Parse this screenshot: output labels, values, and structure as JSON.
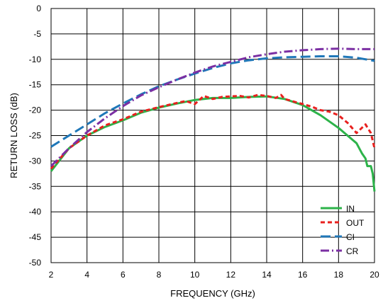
{
  "chart_data": {
    "type": "line",
    "title": "",
    "xlabel": "FREQUENCY (GHz)",
    "ylabel": "RETURN LOSS (dB)",
    "xlim": [
      2,
      20
    ],
    "ylim": [
      -50,
      0
    ],
    "xticks": [
      2,
      4,
      6,
      8,
      10,
      12,
      14,
      16,
      18,
      20
    ],
    "yticks": [
      0,
      -5,
      -10,
      -15,
      -20,
      -25,
      -30,
      -35,
      -40,
      -45,
      -50
    ],
    "grid": true,
    "legend_position": "bottom-right",
    "series": [
      {
        "name": "IN",
        "color": "#2db34a",
        "dash": "solid",
        "points": [
          [
            2,
            -32
          ],
          [
            3,
            -27.5
          ],
          [
            4,
            -25
          ],
          [
            5,
            -23.3
          ],
          [
            6,
            -22
          ],
          [
            7,
            -20.5
          ],
          [
            8,
            -19.5
          ],
          [
            9,
            -18.7
          ],
          [
            10,
            -18
          ],
          [
            11,
            -17.6
          ],
          [
            12,
            -17.6
          ],
          [
            13,
            -17.4
          ],
          [
            14,
            -17.3
          ],
          [
            15,
            -17.8
          ],
          [
            16,
            -19
          ],
          [
            17,
            -21
          ],
          [
            18,
            -23.5
          ],
          [
            18.5,
            -25
          ],
          [
            19,
            -26.5
          ],
          [
            19.3,
            -28.5
          ],
          [
            19.5,
            -29.5
          ],
          [
            19.6,
            -31
          ],
          [
            19.8,
            -31
          ],
          [
            19.9,
            -32.5
          ],
          [
            20,
            -36
          ]
        ]
      },
      {
        "name": "OUT",
        "color": "#e8201e",
        "dash": "dashed",
        "points": [
          [
            2,
            -31.5
          ],
          [
            3,
            -27.5
          ],
          [
            4,
            -25
          ],
          [
            5,
            -23
          ],
          [
            6,
            -21.8
          ],
          [
            7,
            -20.3
          ],
          [
            8,
            -19.4
          ],
          [
            9,
            -18.6
          ],
          [
            9.5,
            -18.2
          ],
          [
            10,
            -18.8
          ],
          [
            10.5,
            -17.2
          ],
          [
            11,
            -17.8
          ],
          [
            11.5,
            -17.4
          ],
          [
            12,
            -17.3
          ],
          [
            12.5,
            -17.2
          ],
          [
            13,
            -17.5
          ],
          [
            13.5,
            -17
          ],
          [
            14,
            -17.2
          ],
          [
            14.5,
            -17.6
          ],
          [
            14.8,
            -17
          ],
          [
            15,
            -17.8
          ],
          [
            15.5,
            -18.3
          ],
          [
            16,
            -18.8
          ],
          [
            16.5,
            -19.3
          ],
          [
            17,
            -20
          ],
          [
            17.5,
            -20.3
          ],
          [
            18,
            -21
          ],
          [
            18.5,
            -22.5
          ],
          [
            19,
            -24.5
          ],
          [
            19.5,
            -22.8
          ],
          [
            19.8,
            -24.5
          ],
          [
            20,
            -27.5
          ]
        ]
      },
      {
        "name": "CI",
        "color": "#1f77b8",
        "dash": "longdash",
        "points": [
          [
            2,
            -27.2
          ],
          [
            3,
            -25
          ],
          [
            4,
            -22.8
          ],
          [
            5,
            -20.6
          ],
          [
            6,
            -18.7
          ],
          [
            7,
            -16.9
          ],
          [
            8,
            -15.3
          ],
          [
            9,
            -14
          ],
          [
            10,
            -12.8
          ],
          [
            11,
            -11.7
          ],
          [
            12,
            -10.8
          ],
          [
            13,
            -10.2
          ],
          [
            14,
            -9.8
          ],
          [
            15,
            -9.6
          ],
          [
            16,
            -9.5
          ],
          [
            17,
            -9.4
          ],
          [
            18,
            -9.4
          ],
          [
            19,
            -9.7
          ],
          [
            20,
            -10.3
          ]
        ]
      },
      {
        "name": "CR",
        "color": "#7b2fa3",
        "dash": "dashdot",
        "points": [
          [
            2,
            -31
          ],
          [
            3,
            -27.5
          ],
          [
            4,
            -24.3
          ],
          [
            5,
            -21.6
          ],
          [
            6,
            -19.2
          ],
          [
            7,
            -17.1
          ],
          [
            8,
            -15.5
          ],
          [
            9,
            -14
          ],
          [
            10,
            -12.6
          ],
          [
            11,
            -11.4
          ],
          [
            12,
            -10.5
          ],
          [
            13,
            -9.6
          ],
          [
            14,
            -9
          ],
          [
            15,
            -8.5
          ],
          [
            16,
            -8.2
          ],
          [
            17,
            -8
          ],
          [
            18,
            -7.9
          ],
          [
            19,
            -8
          ],
          [
            20,
            -8
          ]
        ]
      }
    ]
  }
}
